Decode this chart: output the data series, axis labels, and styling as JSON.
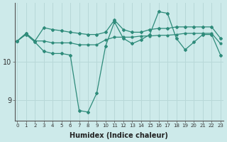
{
  "x": [
    0,
    1,
    2,
    3,
    4,
    5,
    6,
    7,
    8,
    9,
    10,
    11,
    12,
    13,
    14,
    15,
    16,
    17,
    18,
    19,
    20,
    21,
    22,
    23
  ],
  "line_upper": [
    10.55,
    10.75,
    10.55,
    10.9,
    10.85,
    10.82,
    10.78,
    10.75,
    10.72,
    10.72,
    10.78,
    11.1,
    10.85,
    10.78,
    10.78,
    10.85,
    10.88,
    10.88,
    10.92,
    10.92,
    10.92,
    10.92,
    10.92,
    10.62
  ],
  "line_mid": [
    10.55,
    10.75,
    10.55,
    10.55,
    10.5,
    10.5,
    10.5,
    10.45,
    10.45,
    10.45,
    10.58,
    10.65,
    10.65,
    10.65,
    10.68,
    10.68,
    10.7,
    10.7,
    10.72,
    10.75,
    10.75,
    10.75,
    10.75,
    10.48
  ],
  "line_lower": [
    10.55,
    10.72,
    10.52,
    10.28,
    10.22,
    10.22,
    10.18,
    8.72,
    8.68,
    9.18,
    10.42,
    11.05,
    10.62,
    10.48,
    10.58,
    10.72,
    11.32,
    11.28,
    10.62,
    10.32,
    10.52,
    10.72,
    10.72,
    10.18
  ],
  "line_color": "#2e8b7a",
  "bg_color": "#cdeaea",
  "grid_color": "#b8d8d8",
  "xlabel": "Humidex (Indice chaleur)",
  "ylim": [
    8.45,
    11.55
  ],
  "yticks": [
    9,
    10
  ],
  "xticks": [
    0,
    1,
    2,
    3,
    4,
    5,
    6,
    7,
    8,
    9,
    10,
    11,
    12,
    13,
    14,
    15,
    16,
    17,
    18,
    19,
    20,
    21,
    22,
    23
  ]
}
